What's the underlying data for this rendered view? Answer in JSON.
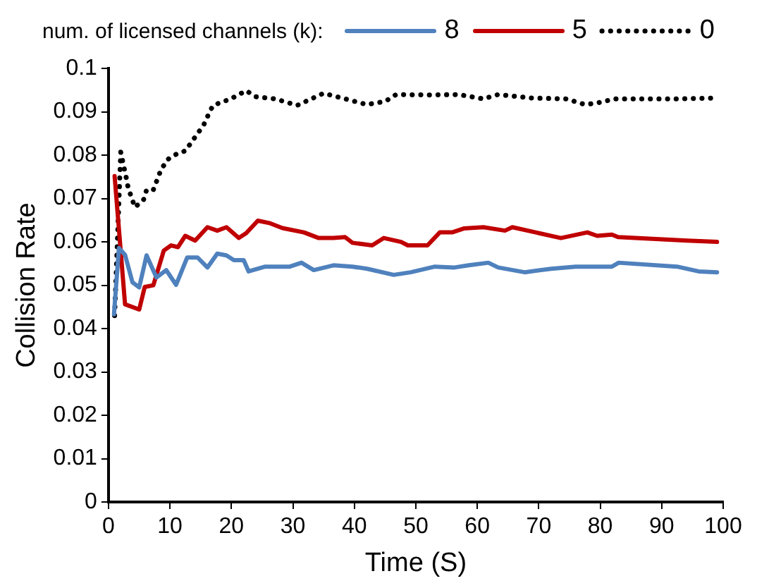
{
  "chart_data": {
    "type": "line",
    "xlabel": "Time (S)",
    "ylabel": "Collision Rate",
    "legend_title": "num. of licensed channels (k):",
    "legend": "top",
    "grid": false,
    "marker": "none",
    "xlim": [
      0,
      100
    ],
    "xticks": [
      0,
      10,
      20,
      30,
      40,
      50,
      60,
      70,
      80,
      90,
      100
    ],
    "ylim": [
      0,
      0.1
    ],
    "yticks": [
      0,
      0.01,
      0.02,
      0.03,
      0.04,
      0.05,
      0.06,
      0.07,
      0.08,
      0.09,
      0.1
    ],
    "series": [
      {
        "name": "8",
        "color": "#4f81bd",
        "line_style": "solid",
        "x": [
          0.9,
          1.7,
          2.7,
          3.9,
          5,
          6.2,
          7.8,
          9.4,
          11,
          12.8,
          14.5,
          16.1,
          17.7,
          19.2,
          20.4,
          22,
          22.8,
          25.5,
          29.5,
          31.4,
          33.4,
          36.6,
          39.7,
          42.1,
          46.4,
          49.2,
          53.1,
          56.3,
          58.6,
          61.8,
          63.4,
          67.7,
          72,
          76,
          81.9,
          83,
          92.5,
          96,
          99
        ],
        "values": [
          0.0433,
          0.0586,
          0.057,
          0.0507,
          0.0495,
          0.0569,
          0.0518,
          0.0535,
          0.0501,
          0.0564,
          0.0564,
          0.0541,
          0.0573,
          0.0569,
          0.0558,
          0.0558,
          0.0532,
          0.0543,
          0.0543,
          0.0552,
          0.0535,
          0.0546,
          0.0543,
          0.0538,
          0.0524,
          0.053,
          0.0543,
          0.0541,
          0.0546,
          0.0552,
          0.0541,
          0.053,
          0.0538,
          0.0543,
          0.0543,
          0.0552,
          0.0543,
          0.0532,
          0.053
        ]
      },
      {
        "name": "5",
        "color": "#c00000",
        "line_style": "solid",
        "x": [
          1,
          2.7,
          5,
          5.9,
          7.3,
          9,
          10.2,
          11.3,
          12.5,
          14.1,
          16.1,
          17.7,
          19.2,
          21.2,
          22.4,
          24.3,
          26.3,
          28.3,
          31.8,
          34.2,
          36.6,
          38.5,
          39.7,
          42.9,
          44.8,
          47.6,
          48.7,
          51.9,
          53.9,
          55.9,
          57.8,
          61,
          64.5,
          65.7,
          73.6,
          77.9,
          79.5,
          81.9,
          82.9,
          94.1,
          99
        ],
        "values": [
          0.0752,
          0.0456,
          0.0444,
          0.0496,
          0.05,
          0.058,
          0.0592,
          0.0588,
          0.0614,
          0.0603,
          0.0634,
          0.0626,
          0.0634,
          0.0609,
          0.062,
          0.0649,
          0.0643,
          0.0632,
          0.0622,
          0.0609,
          0.0609,
          0.0611,
          0.0598,
          0.0592,
          0.0609,
          0.06,
          0.0592,
          0.0592,
          0.0622,
          0.0622,
          0.0631,
          0.0634,
          0.0626,
          0.0634,
          0.0609,
          0.0622,
          0.0614,
          0.0617,
          0.0611,
          0.0603,
          0.06
        ]
      },
      {
        "name": "0",
        "color": "#000000",
        "line_style": "dotted",
        "x": [
          1,
          2,
          2.4,
          2.8,
          3.2,
          4.3,
          5.7,
          6.2,
          7.3,
          8.5,
          9.6,
          11.1,
          12.5,
          13.5,
          15.5,
          16.3,
          17,
          19.9,
          22.4,
          23.9,
          27.1,
          30.7,
          35,
          38.5,
          42,
          45,
          46.8,
          52.2,
          57,
          61,
          63.4,
          68.8,
          74.4,
          77.5,
          79.4,
          82.3,
          92.4,
          98.8
        ],
        "values": [
          0.043,
          0.0807,
          0.078,
          0.0755,
          0.0725,
          0.068,
          0.0697,
          0.072,
          0.072,
          0.0765,
          0.079,
          0.0803,
          0.081,
          0.083,
          0.087,
          0.0895,
          0.0915,
          0.093,
          0.0949,
          0.0935,
          0.093,
          0.0915,
          0.0943,
          0.093,
          0.0917,
          0.0924,
          0.094,
          0.0939,
          0.094,
          0.093,
          0.094,
          0.0932,
          0.093,
          0.0917,
          0.092,
          0.093,
          0.093,
          0.0932
        ]
      }
    ]
  }
}
